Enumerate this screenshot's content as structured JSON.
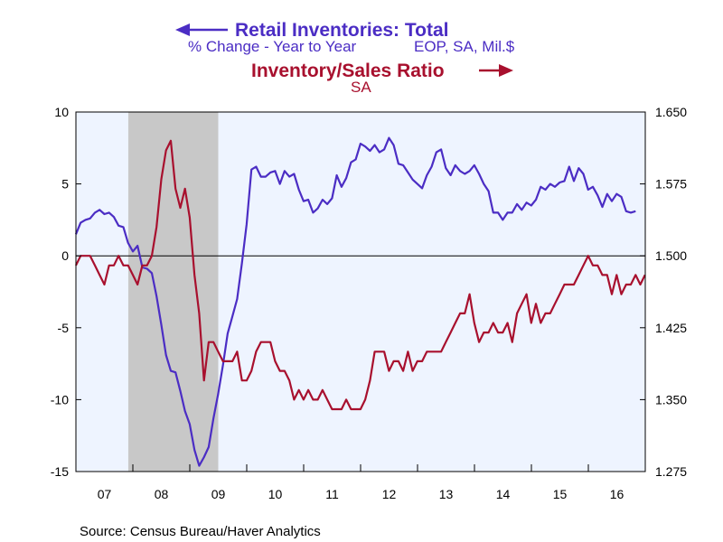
{
  "chart_data": {
    "type": "line",
    "title_left": "Retail Inventories: Total",
    "subtitle_left_a": "% Change - Year to Year",
    "subtitle_left_b": "EOP, SA, Mil.$",
    "title_right": "Inventory/Sales Ratio",
    "subtitle_right": "SA",
    "source": "Source:  Census Bureau/Haver Analytics",
    "x_start": 2007,
    "x_end": 2017,
    "x_tick_labels": [
      "07",
      "08",
      "09",
      "10",
      "11",
      "12",
      "13",
      "14",
      "15",
      "16"
    ],
    "left_axis": {
      "ylim": [
        -15,
        10
      ],
      "ticks": [
        10,
        5,
        0,
        -5,
        -10,
        -15
      ],
      "tick_labels": [
        "10",
        "5",
        "0",
        "-5",
        "-10",
        "-15"
      ]
    },
    "right_axis": {
      "ylim": [
        1.275,
        1.65
      ],
      "ticks": [
        1.65,
        1.575,
        1.5,
        1.425,
        1.35,
        1.275
      ],
      "tick_labels": [
        "1.650",
        "1.575",
        "1.500",
        "1.425",
        "1.350",
        "1.275"
      ]
    },
    "recession": {
      "start": 2007.92,
      "end": 2009.5
    },
    "reference_line": 0,
    "series": [
      {
        "name": "Retail Inventories: Total",
        "axis": "left",
        "color": "#4b2dc4",
        "start": 2007.0,
        "step": 0.0833,
        "values": [
          1.5,
          2.3,
          2.5,
          2.6,
          3.0,
          3.2,
          2.9,
          3.0,
          2.7,
          2.1,
          2.0,
          0.9,
          0.3,
          0.7,
          -0.8,
          -0.9,
          -1.2,
          -2.8,
          -4.8,
          -6.9,
          -8.0,
          -8.1,
          -9.4,
          -10.8,
          -11.7,
          -13.5,
          -14.6,
          -14.0,
          -13.3,
          -11.3,
          -9.6,
          -7.6,
          -5.4,
          -4.2,
          -3.0,
          -0.5,
          2.2,
          6.0,
          6.2,
          5.5,
          5.5,
          5.8,
          5.9,
          5.0,
          5.9,
          5.5,
          5.7,
          4.6,
          3.8,
          3.9,
          3.0,
          3.3,
          3.9,
          3.6,
          4.0,
          5.6,
          4.8,
          5.4,
          6.5,
          6.7,
          7.8,
          7.6,
          7.3,
          7.7,
          7.2,
          7.4,
          8.2,
          7.7,
          6.4,
          6.3,
          5.8,
          5.3,
          5.0,
          4.7,
          5.6,
          6.2,
          7.2,
          7.4,
          6.1,
          5.6,
          6.3,
          5.9,
          5.7,
          5.9,
          6.3,
          5.7,
          5.0,
          4.5,
          3.0,
          3.0,
          2.5,
          3.0,
          3.0,
          3.6,
          3.2,
          3.7,
          3.5,
          3.9,
          4.8,
          4.6,
          5.0,
          4.8,
          5.1,
          5.2,
          6.2,
          5.2,
          6.1,
          5.7,
          4.6,
          4.8,
          4.2,
          3.4,
          4.3,
          3.8,
          4.3,
          4.1,
          3.1,
          3.0,
          3.1
        ]
      },
      {
        "name": "Inventory/Sales Ratio",
        "axis": "right",
        "color": "#a8102e",
        "start": 2007.0,
        "step": 0.0833,
        "values": [
          1.49,
          1.5,
          1.5,
          1.5,
          1.49,
          1.48,
          1.47,
          1.49,
          1.49,
          1.5,
          1.49,
          1.49,
          1.48,
          1.47,
          1.49,
          1.49,
          1.5,
          1.53,
          1.58,
          1.61,
          1.62,
          1.57,
          1.55,
          1.57,
          1.54,
          1.48,
          1.44,
          1.37,
          1.41,
          1.41,
          1.4,
          1.39,
          1.39,
          1.39,
          1.4,
          1.37,
          1.37,
          1.38,
          1.4,
          1.41,
          1.41,
          1.41,
          1.39,
          1.38,
          1.38,
          1.37,
          1.35,
          1.36,
          1.35,
          1.36,
          1.35,
          1.35,
          1.36,
          1.35,
          1.34,
          1.34,
          1.34,
          1.35,
          1.34,
          1.34,
          1.34,
          1.35,
          1.37,
          1.4,
          1.4,
          1.4,
          1.38,
          1.39,
          1.39,
          1.38,
          1.4,
          1.38,
          1.39,
          1.39,
          1.4,
          1.4,
          1.4,
          1.4,
          1.41,
          1.42,
          1.43,
          1.44,
          1.44,
          1.46,
          1.43,
          1.41,
          1.42,
          1.42,
          1.43,
          1.42,
          1.42,
          1.43,
          1.41,
          1.44,
          1.45,
          1.46,
          1.43,
          1.45,
          1.43,
          1.44,
          1.44,
          1.45,
          1.46,
          1.47,
          1.47,
          1.47,
          1.48,
          1.49,
          1.5,
          1.49,
          1.49,
          1.48,
          1.48,
          1.46,
          1.48,
          1.46,
          1.47,
          1.47,
          1.48,
          1.47,
          1.48
        ]
      }
    ]
  }
}
